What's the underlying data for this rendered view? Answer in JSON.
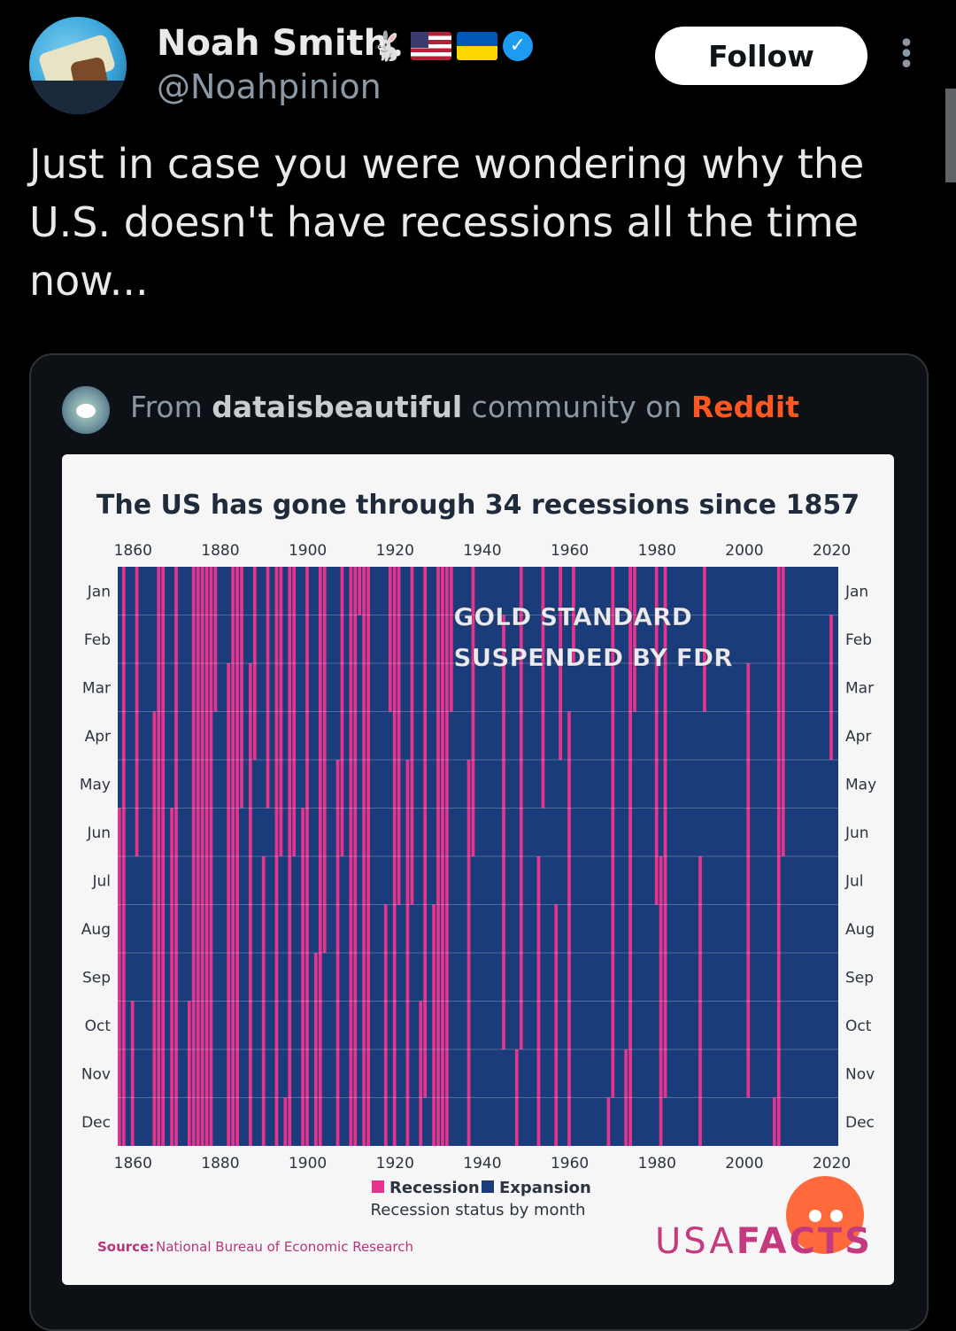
{
  "tweet": {
    "author_name": "Noah Smith",
    "handle": "@Noahpinion",
    "follow_label": "Follow",
    "text": "Just in case you were wondering why the U.S. doesn't have recessions all the time now...",
    "badges": [
      "rabbit-emoji",
      "us-flag",
      "ukraine-flag",
      "verified-badge"
    ]
  },
  "card": {
    "from_prefix": "From",
    "community": "dataisbeautiful",
    "middle": "community on",
    "platform": "Reddit"
  },
  "chart_data": {
    "type": "heatmap",
    "title": "The US has gone through 34 recessions since 1857",
    "x_ticks": [
      "1860",
      "1880",
      "1900",
      "1920",
      "1940",
      "1960",
      "1980",
      "2000",
      "2020"
    ],
    "y_labels": [
      "Jan",
      "Feb",
      "Mar",
      "Apr",
      "May",
      "Jun",
      "Jul",
      "Aug",
      "Sep",
      "Oct",
      "Nov",
      "Dec"
    ],
    "x_range": [
      1857,
      2021
    ],
    "legend": [
      {
        "label": "Recession",
        "color": "#e8338d"
      },
      {
        "label": "Expansion",
        "color": "#1a3c7a"
      }
    ],
    "legend_subtitle": "Recession status by month",
    "annotation": {
      "line1": "GOLD STANDARD",
      "line2": "SUSPENDED BY FDR",
      "at_year": 1933
    },
    "source_label": "Source:",
    "source_text": "National Bureau of Economic Research",
    "brand": {
      "prefix": "USA",
      "suffix": "FACTS"
    },
    "recessions": [
      {
        "start": "1857-06",
        "end": "1858-12"
      },
      {
        "start": "1860-10",
        "end": "1861-06"
      },
      {
        "start": "1865-04",
        "end": "1867-12"
      },
      {
        "start": "1869-06",
        "end": "1870-12"
      },
      {
        "start": "1873-10",
        "end": "1879-03"
      },
      {
        "start": "1882-03",
        "end": "1885-05"
      },
      {
        "start": "1887-03",
        "end": "1888-04"
      },
      {
        "start": "1890-07",
        "end": "1891-05"
      },
      {
        "start": "1893-01",
        "end": "1894-06"
      },
      {
        "start": "1895-12",
        "end": "1897-06"
      },
      {
        "start": "1899-06",
        "end": "1900-12"
      },
      {
        "start": "1902-09",
        "end": "1904-08"
      },
      {
        "start": "1907-05",
        "end": "1908-06"
      },
      {
        "start": "1910-01",
        "end": "1912-01"
      },
      {
        "start": "1913-01",
        "end": "1914-12"
      },
      {
        "start": "1918-08",
        "end": "1919-03"
      },
      {
        "start": "1920-01",
        "end": "1921-07"
      },
      {
        "start": "1923-05",
        "end": "1924-07"
      },
      {
        "start": "1926-10",
        "end": "1927-11"
      },
      {
        "start": "1929-08",
        "end": "1933-03"
      },
      {
        "start": "1937-05",
        "end": "1938-06"
      },
      {
        "start": "1945-02",
        "end": "1945-10"
      },
      {
        "start": "1948-11",
        "end": "1949-10"
      },
      {
        "start": "1953-07",
        "end": "1954-05"
      },
      {
        "start": "1957-08",
        "end": "1958-04"
      },
      {
        "start": "1960-04",
        "end": "1961-02"
      },
      {
        "start": "1969-12",
        "end": "1970-11"
      },
      {
        "start": "1973-11",
        "end": "1975-03"
      },
      {
        "start": "1980-01",
        "end": "1980-07"
      },
      {
        "start": "1981-07",
        "end": "1982-11"
      },
      {
        "start": "1990-07",
        "end": "1991-03"
      },
      {
        "start": "2001-03",
        "end": "2001-11"
      },
      {
        "start": "2007-12",
        "end": "2009-06"
      },
      {
        "start": "2020-02",
        "end": "2020-04"
      }
    ]
  }
}
